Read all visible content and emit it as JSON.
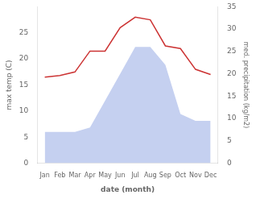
{
  "chart_data": {
    "type": "line",
    "xlabel": "date (month)",
    "ylabel": "max temp (C)",
    "y2label": "med. precipitation (kg/m2)",
    "categories": [
      "Jan",
      "Feb",
      "Mar",
      "Apr",
      "May",
      "Jun",
      "Jul",
      "Aug",
      "Sep",
      "Oct",
      "Nov",
      "Dec"
    ],
    "series": [
      {
        "type": "area",
        "axis": "y2",
        "color": "#c5d0f0",
        "values": [
          7.0,
          7.0,
          7.0,
          8.0,
          14.0,
          20.0,
          26.0,
          26.0,
          22.0,
          11.0,
          9.5,
          9.5
        ]
      },
      {
        "type": "line",
        "color": "#cc3333",
        "values": [
          16.5,
          16.8,
          17.5,
          21.5,
          21.5,
          26.0,
          28.0,
          27.5,
          22.5,
          22.0,
          18.0,
          17.0
        ]
      }
    ],
    "ylim": [
      0,
      30
    ],
    "yticks": [
      0,
      5,
      10,
      15,
      20,
      25
    ],
    "y2lim": [
      0,
      35
    ],
    "y2ticks": [
      0,
      5,
      10,
      15,
      20,
      25,
      30,
      35
    ],
    "grid": false
  }
}
